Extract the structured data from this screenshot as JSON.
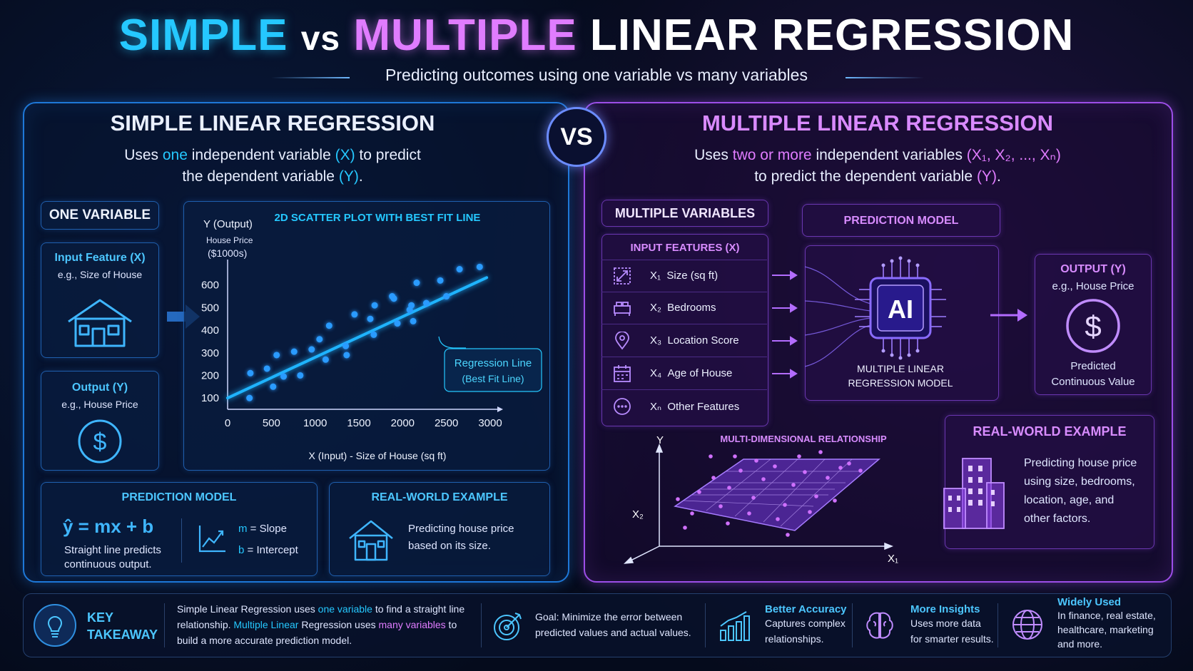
{
  "header": {
    "title_simple": "SIMPLE",
    "title_vs": "vs",
    "title_multiple": "MULTIPLE",
    "title_rest": "LINEAR REGRESSION",
    "subtitle": "Predicting outcomes using one variable vs many variables"
  },
  "vs_badge": "VS",
  "simple": {
    "heading": "SIMPLE LINEAR REGRESSION",
    "desc": {
      "p1": "Uses ",
      "h1": "one",
      "p2": " independent variable ",
      "h2": "(X)",
      "p3": " to predict",
      "p4": "the dependent variable ",
      "h3": "(Y)",
      "p5": "."
    },
    "one_variable_label": "ONE VARIABLE",
    "input_card": {
      "title": "Input Feature (X)",
      "example": "e.g., Size of House",
      "icon": "house-icon"
    },
    "output_card": {
      "title": "Output (Y)",
      "example": "e.g., House Price",
      "icon": "dollar-icon"
    },
    "prediction_model": {
      "heading": "PREDICTION MODEL",
      "equation": "ŷ = mx + b",
      "caption_line1": "Straight line predicts",
      "caption_line2": "continuous output.",
      "m_label": "m",
      "m_text": "= Slope",
      "b_label": "b",
      "b_text": "= Intercept"
    },
    "real_world": {
      "heading": "REAL-WORLD EXAMPLE",
      "line1": "Predicting house price",
      "line2": "based on its size."
    }
  },
  "chart_data": {
    "type": "scatter",
    "title": "2D SCATTER PLOT WITH BEST FIT LINE",
    "ylabel": "Y (Output)",
    "ylabel_sub1": "House Price",
    "ylabel_sub2": "($1000s)",
    "xlabel": "X (Input) - Size of House (sq ft)",
    "xlim": [
      0,
      3000
    ],
    "ylim": [
      50,
      700
    ],
    "x_ticks": [
      "0",
      "500",
      "1000",
      "1500",
      "2000",
      "2500",
      "3000"
    ],
    "y_ticks": [
      "100",
      "200",
      "300",
      "400",
      "500",
      "600"
    ],
    "annotation_line1": "Regression Line",
    "annotation_line2": "(Best Fit Line)",
    "best_fit": {
      "slope": 0.18,
      "intercept": 100
    },
    "points": [
      [
        250,
        100
      ],
      [
        260,
        210
      ],
      [
        450,
        230
      ],
      [
        520,
        150
      ],
      [
        560,
        290
      ],
      [
        640,
        195
      ],
      [
        760,
        305
      ],
      [
        830,
        200
      ],
      [
        960,
        315
      ],
      [
        1050,
        360
      ],
      [
        1120,
        270
      ],
      [
        1160,
        420
      ],
      [
        1350,
        330
      ],
      [
        1360,
        290
      ],
      [
        1450,
        470
      ],
      [
        1630,
        450
      ],
      [
        1670,
        380
      ],
      [
        1680,
        510
      ],
      [
        1880,
        550
      ],
      [
        1940,
        430
      ],
      [
        1900,
        540
      ],
      [
        2100,
        510
      ],
      [
        2120,
        440
      ],
      [
        2080,
        490
      ],
      [
        2160,
        610
      ],
      [
        2270,
        520
      ],
      [
        2430,
        620
      ],
      [
        2500,
        550
      ],
      [
        2650,
        670
      ],
      [
        2880,
        680
      ]
    ]
  },
  "multiple": {
    "heading": "MULTIPLE LINEAR REGRESSION",
    "desc": {
      "p1": "Uses ",
      "h1": "two or more",
      "p2": " independent variables ",
      "h2": "(X₁, X₂, ..., Xₙ)",
      "p4": "to predict the dependent variable ",
      "h3": "(Y)",
      "p5": "."
    },
    "multiple_variables_label": "MULTIPLE VARIABLES",
    "input_features_label": "INPUT FEATURES (X)",
    "features": [
      {
        "var": "X₁",
        "label": "Size (sq ft)",
        "icon": "resize-icon"
      },
      {
        "var": "X₂",
        "label": "Bedrooms",
        "icon": "bed-icon"
      },
      {
        "var": "X₃",
        "label": "Location Score",
        "icon": "location-pin-icon"
      },
      {
        "var": "X₄",
        "label": "Age of House",
        "icon": "calendar-icon"
      },
      {
        "var": "Xₙ",
        "label": "Other Features",
        "icon": "more-icon"
      }
    ],
    "prediction_model": {
      "heading": "PREDICTION MODEL",
      "chip_text": "AI",
      "model_line1": "MULTIPLE LINEAR",
      "model_line2": "REGRESSION MODEL"
    },
    "output_card": {
      "title": "OUTPUT (Y)",
      "example": "e.g., House Price",
      "caption_line1": "Predicted",
      "caption_line2": "Continuous Value"
    },
    "multi_dim_label": "MULTI-DIMENSIONAL RELATIONSHIP",
    "axis_y": "Y",
    "axis_x1": "X₁",
    "axis_x2": "X₂",
    "real_world": {
      "heading": "REAL-WORLD EXAMPLE",
      "line1": "Predicting house price",
      "line2": "using size, bedrooms,",
      "line3": "location, age, and",
      "line4": "other factors."
    }
  },
  "footer": {
    "key_line1": "KEY",
    "key_line2": "TAKEAWAY",
    "takeaway": {
      "a": "Simple Linear Regression uses ",
      "b": "one variable",
      "c": " to find a straight line",
      "d": "relationship. ",
      "e": "Multiple Linear",
      "f": " Regression uses ",
      "g": "many variables",
      "h": " to",
      "i": "build a more accurate prediction model."
    },
    "goal_line1": "Goal: Minimize the error between",
    "goal_line2": "predicted values and actual values.",
    "accuracy": {
      "title": "Better Accuracy",
      "line1": "Captures complex",
      "line2": "relationships."
    },
    "insights": {
      "title": "More Insights",
      "line1": "Uses more data",
      "line2": "for smarter results."
    },
    "widely": {
      "title": "Widely Used",
      "line1": "In finance, real estate,",
      "line2": "healthcare, marketing",
      "line3": "and more."
    }
  },
  "colors": {
    "cyan": "#25c8ff",
    "magenta": "#e07cff",
    "blue_border": "#1e78d8",
    "purple_border": "#9d4ee8"
  }
}
